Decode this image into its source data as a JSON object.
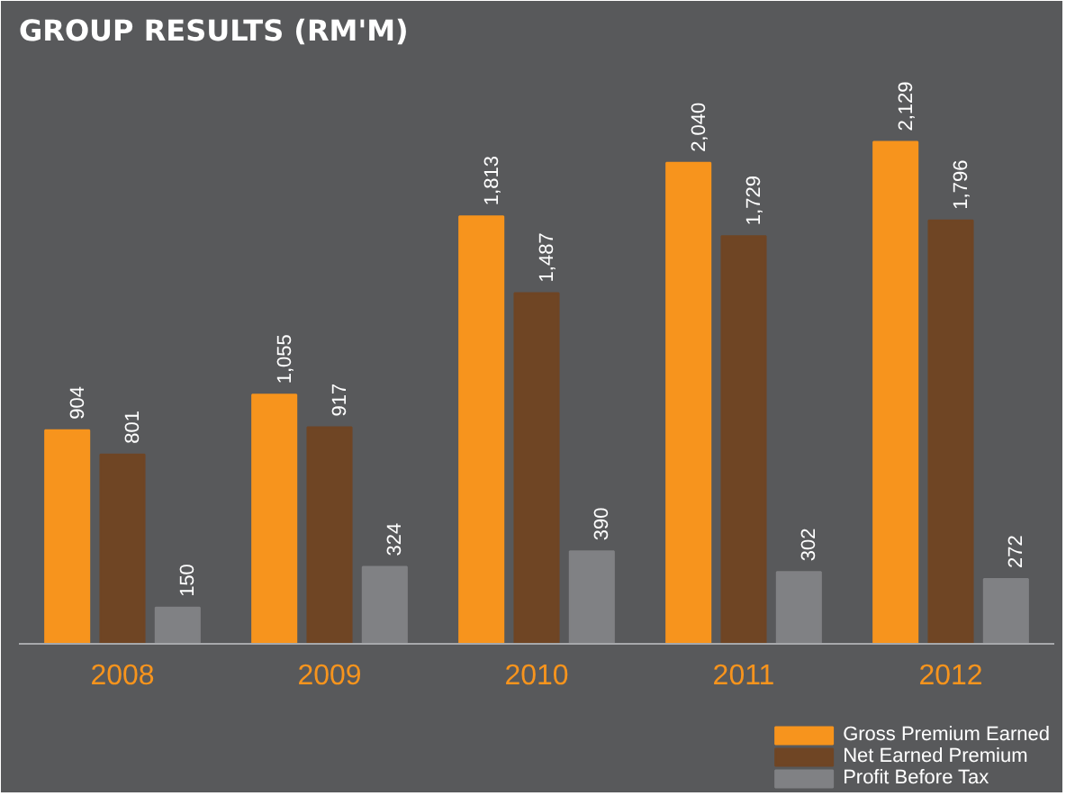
{
  "chart_data": {
    "type": "bar",
    "title": "GROUP RESULTS (RM'M)",
    "categories": [
      "2008",
      "2009",
      "2010",
      "2011",
      "2012"
    ],
    "series": [
      {
        "name": "Gross Premium Earned",
        "color": "#f7941d",
        "values": [
          904,
          1055,
          1813,
          2040,
          2129
        ],
        "value_labels": [
          "904",
          "1,055",
          "1,813",
          "2,040",
          "2,129"
        ]
      },
      {
        "name": "Net Earned Premium",
        "color": "#6f4524",
        "values": [
          801,
          917,
          1487,
          1729,
          1796
        ],
        "value_labels": [
          "801",
          "917",
          "1,487",
          "1,729",
          "1,796"
        ]
      },
      {
        "name": "Profit Before Tax",
        "color": "#808184",
        "values": [
          150,
          324,
          390,
          302,
          272
        ],
        "value_labels": [
          "150",
          "324",
          "390",
          "302",
          "272"
        ]
      }
    ],
    "legend": "bottom"
  }
}
